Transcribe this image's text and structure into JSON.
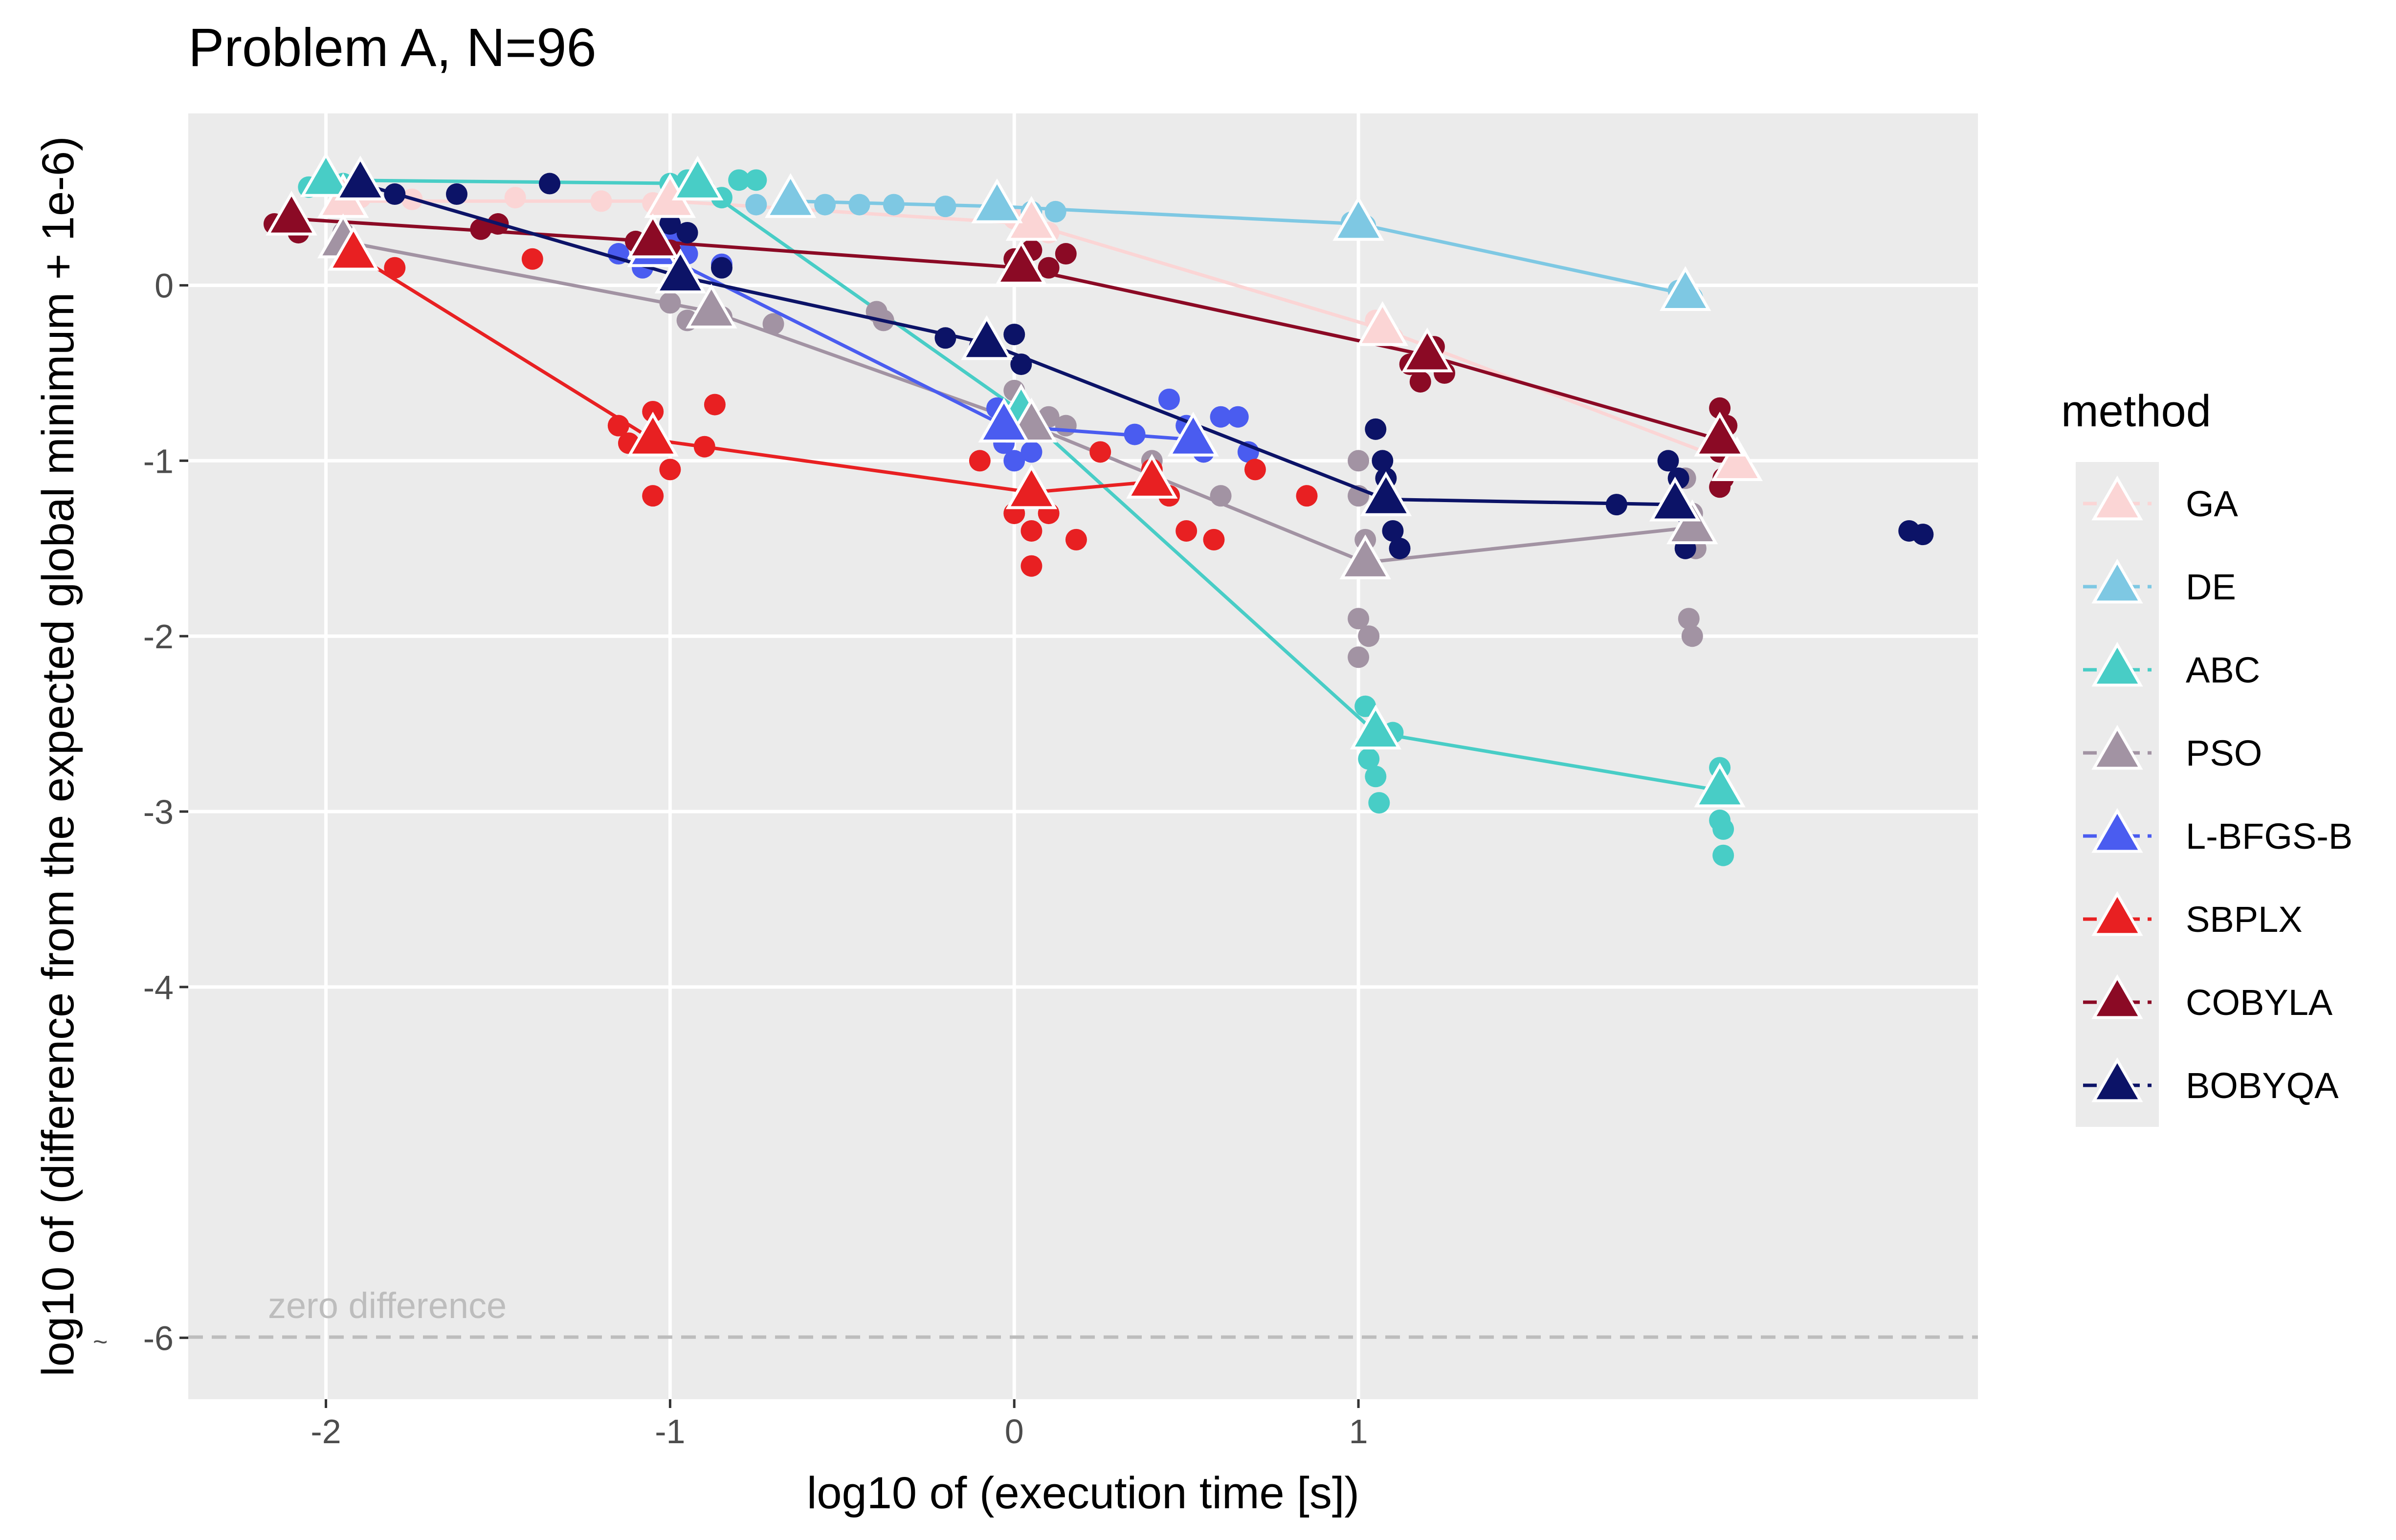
{
  "chart_data": {
    "type": "scatter",
    "title": "Problem A, N=96",
    "xlabel": "log10 of (execution time [s])",
    "ylabel": "log10 of (difference from the expected global minimum + 1e-6)",
    "xlim": [
      -2.4,
      2.8
    ],
    "ylim": [
      -6.35,
      0.98
    ],
    "x_ticks": [
      -2,
      -1,
      0,
      1
    ],
    "x_tick_labels": [
      "-2",
      "-1",
      "0",
      "1"
    ],
    "y_ticks": [
      0,
      -1,
      -2,
      -3,
      -4,
      -6
    ],
    "y_tick_labels": [
      "0",
      "-1",
      "-2",
      "-3",
      "-4",
      "-6"
    ],
    "y_axis_break_marker": "~",
    "grid": true,
    "legend": {
      "title": "method",
      "placement": "right"
    },
    "reference_line": {
      "y": -6,
      "label": "zero difference",
      "style": "dashed"
    },
    "series": [
      {
        "name": "GA",
        "color": "#fbd5d5",
        "medians": [
          [
            -1.95,
            0.48
          ],
          [
            -1.0,
            0.48
          ],
          [
            0.05,
            0.35
          ],
          [
            1.07,
            -0.25
          ],
          [
            2.1,
            -1.02
          ]
        ],
        "points": [
          [
            -1.9,
            0.5
          ],
          [
            -1.75,
            0.49
          ],
          [
            -1.45,
            0.5
          ],
          [
            -1.2,
            0.48
          ],
          [
            -1.05,
            0.47
          ],
          [
            0.0,
            0.38
          ],
          [
            0.1,
            0.3
          ],
          [
            1.05,
            -0.2
          ],
          [
            1.1,
            -0.3
          ],
          [
            2.05,
            -0.95
          ],
          [
            2.12,
            -1.05
          ]
        ]
      },
      {
        "name": "DE",
        "color": "#7ec8e3",
        "medians": [
          [
            -0.65,
            0.48
          ],
          [
            -0.05,
            0.45
          ],
          [
            1.0,
            0.35
          ],
          [
            1.95,
            -0.05
          ]
        ],
        "points": [
          [
            -0.75,
            0.46
          ],
          [
            -0.55,
            0.46
          ],
          [
            -0.45,
            0.46
          ],
          [
            -0.35,
            0.46
          ],
          [
            -0.2,
            0.45
          ],
          [
            0.05,
            0.42
          ],
          [
            0.12,
            0.42
          ],
          [
            0.98,
            0.36
          ],
          [
            1.02,
            0.34
          ],
          [
            1.93,
            -0.03
          ],
          [
            1.97,
            -0.07
          ]
        ]
      },
      {
        "name": "ABC",
        "color": "#48cdc6",
        "medians": [
          [
            -2.0,
            0.6
          ],
          [
            -0.92,
            0.58
          ],
          [
            0.02,
            -0.72
          ],
          [
            1.05,
            -2.55
          ],
          [
            2.05,
            -2.88
          ]
        ],
        "points": [
          [
            -2.05,
            0.56
          ],
          [
            -1.95,
            0.58
          ],
          [
            -1.0,
            0.58
          ],
          [
            -0.95,
            0.6
          ],
          [
            -0.9,
            0.55
          ],
          [
            -0.8,
            0.6
          ],
          [
            -0.75,
            0.6
          ],
          [
            -0.85,
            0.5
          ],
          [
            1.02,
            -2.4
          ],
          [
            1.03,
            -2.7
          ],
          [
            1.05,
            -2.8
          ],
          [
            1.06,
            -2.95
          ],
          [
            1.1,
            -2.55
          ],
          [
            2.05,
            -2.75
          ],
          [
            2.05,
            -3.05
          ],
          [
            2.06,
            -3.1
          ],
          [
            2.06,
            -3.25
          ]
        ]
      },
      {
        "name": "PSO",
        "color": "#a293a3",
        "medians": [
          [
            -1.95,
            0.25
          ],
          [
            -0.88,
            -0.15
          ],
          [
            0.05,
            -0.8
          ],
          [
            1.02,
            -1.58
          ],
          [
            1.97,
            -1.38
          ]
        ],
        "points": [
          [
            -1.95,
            0.3
          ],
          [
            -1.0,
            -0.1
          ],
          [
            -0.95,
            -0.2
          ],
          [
            -0.85,
            -0.18
          ],
          [
            -0.7,
            -0.22
          ],
          [
            -0.4,
            -0.15
          ],
          [
            -0.38,
            -0.2
          ],
          [
            0.0,
            -0.6
          ],
          [
            0.02,
            -0.7
          ],
          [
            0.05,
            -0.95
          ],
          [
            0.1,
            -0.75
          ],
          [
            0.15,
            -0.8
          ],
          [
            0.4,
            -1.0
          ],
          [
            0.6,
            -1.2
          ],
          [
            1.0,
            -1.0
          ],
          [
            1.0,
            -1.2
          ],
          [
            1.02,
            -1.45
          ],
          [
            1.0,
            -1.9
          ],
          [
            1.03,
            -2.0
          ],
          [
            1.0,
            -2.12
          ],
          [
            1.95,
            -1.1
          ],
          [
            1.97,
            -1.3
          ],
          [
            1.98,
            -1.5
          ],
          [
            1.96,
            -1.9
          ],
          [
            1.97,
            -2.0
          ]
        ]
      },
      {
        "name": "L-BFGS-B",
        "color": "#4a5cf0",
        "medians": [
          [
            -1.05,
            0.2
          ],
          [
            -0.03,
            -0.8
          ],
          [
            0.52,
            -0.88
          ]
        ],
        "points": [
          [
            -1.15,
            0.18
          ],
          [
            -1.08,
            0.1
          ],
          [
            -1.0,
            0.25
          ],
          [
            -0.95,
            0.18
          ],
          [
            -0.85,
            0.12
          ],
          [
            -0.05,
            -0.7
          ],
          [
            -0.03,
            -0.9
          ],
          [
            0.0,
            -1.0
          ],
          [
            0.05,
            -0.95
          ],
          [
            0.35,
            -0.85
          ],
          [
            0.45,
            -0.65
          ],
          [
            0.5,
            -0.8
          ],
          [
            0.55,
            -0.95
          ],
          [
            0.6,
            -0.75
          ],
          [
            0.65,
            -0.75
          ],
          [
            0.68,
            -0.95
          ]
        ]
      },
      {
        "name": "SBPLX",
        "color": "#e82022",
        "medians": [
          [
            -1.92,
            0.18
          ],
          [
            -1.05,
            -0.88
          ],
          [
            0.05,
            -1.18
          ],
          [
            0.4,
            -1.12
          ]
        ],
        "points": [
          [
            -1.95,
            0.2
          ],
          [
            -1.8,
            0.1
          ],
          [
            -1.4,
            0.15
          ],
          [
            -1.15,
            -0.8
          ],
          [
            -1.12,
            -0.9
          ],
          [
            -1.05,
            -0.72
          ],
          [
            -1.05,
            -1.2
          ],
          [
            -1.0,
            -1.05
          ],
          [
            -0.9,
            -0.92
          ],
          [
            -0.87,
            -0.68
          ],
          [
            -0.1,
            -1.0
          ],
          [
            0.0,
            -1.3
          ],
          [
            0.05,
            -1.4
          ],
          [
            0.1,
            -1.3
          ],
          [
            0.18,
            -1.45
          ],
          [
            0.25,
            -0.95
          ],
          [
            0.4,
            -1.05
          ],
          [
            0.45,
            -1.2
          ],
          [
            0.5,
            -1.4
          ],
          [
            0.58,
            -1.45
          ],
          [
            0.7,
            -1.05
          ],
          [
            0.85,
            -1.2
          ],
          [
            0.05,
            -1.6
          ]
        ]
      },
      {
        "name": "COBYLA",
        "color": "#8b0a25",
        "medians": [
          [
            -2.1,
            0.38
          ],
          [
            -1.05,
            0.25
          ],
          [
            0.02,
            0.1
          ],
          [
            1.2,
            -0.4
          ],
          [
            2.05,
            -0.88
          ]
        ],
        "points": [
          [
            -2.15,
            0.35
          ],
          [
            -2.08,
            0.3
          ],
          [
            -1.55,
            0.32
          ],
          [
            -1.5,
            0.35
          ],
          [
            -1.1,
            0.25
          ],
          [
            -1.0,
            0.2
          ],
          [
            0.0,
            0.15
          ],
          [
            0.05,
            0.2
          ],
          [
            0.1,
            0.1
          ],
          [
            0.15,
            0.18
          ],
          [
            1.15,
            -0.45
          ],
          [
            1.22,
            -0.35
          ],
          [
            1.25,
            -0.5
          ],
          [
            1.18,
            -0.55
          ],
          [
            2.05,
            -0.7
          ],
          [
            2.05,
            -0.95
          ],
          [
            2.06,
            -1.1
          ],
          [
            2.05,
            -1.15
          ],
          [
            2.07,
            -0.8
          ]
        ]
      },
      {
        "name": "BOBYQA",
        "color": "#0c1367",
        "medians": [
          [
            -1.9,
            0.58
          ],
          [
            -0.97,
            0.05
          ],
          [
            -0.08,
            -0.33
          ],
          [
            1.08,
            -1.22
          ],
          [
            1.92,
            -1.25
          ]
        ],
        "points": [
          [
            -1.95,
            0.55
          ],
          [
            -1.8,
            0.52
          ],
          [
            -1.62,
            0.52
          ],
          [
            -1.35,
            0.58
          ],
          [
            -1.0,
            0.35
          ],
          [
            -0.95,
            0.3
          ],
          [
            -0.85,
            0.1
          ],
          [
            -0.2,
            -0.3
          ],
          [
            -0.1,
            -0.35
          ],
          [
            0.0,
            -0.28
          ],
          [
            0.02,
            -0.45
          ],
          [
            1.05,
            -0.82
          ],
          [
            1.07,
            -1.0
          ],
          [
            1.08,
            -1.1
          ],
          [
            1.1,
            -1.4
          ],
          [
            1.12,
            -1.5
          ],
          [
            1.75,
            -1.25
          ],
          [
            1.9,
            -1.0
          ],
          [
            1.93,
            -1.1
          ],
          [
            1.95,
            -1.3
          ],
          [
            1.95,
            -1.5
          ],
          [
            2.6,
            -1.4
          ],
          [
            2.64,
            -1.42
          ]
        ]
      }
    ]
  }
}
